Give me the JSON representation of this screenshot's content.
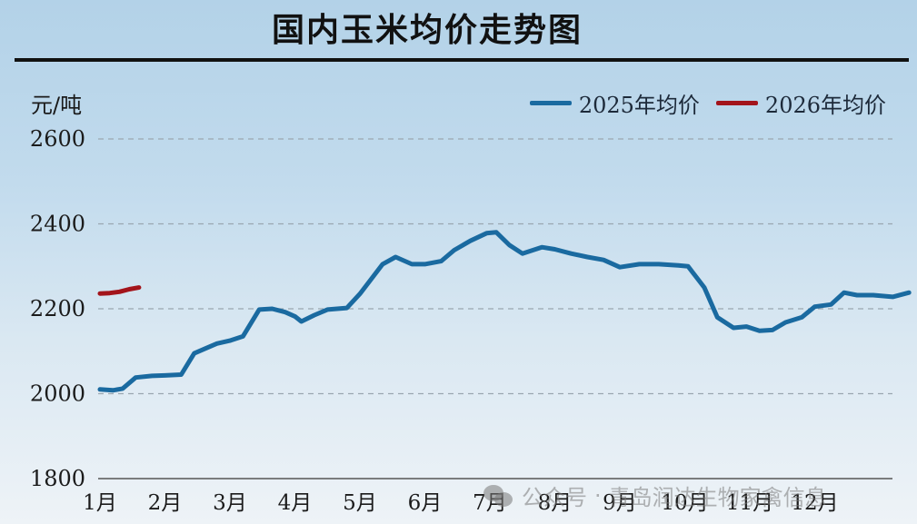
{
  "title": "国内玉米均价走势图",
  "unit_label": "元/吨",
  "legend": [
    {
      "label": "2025年均价",
      "color": "#1a6aa0"
    },
    {
      "label": "2026年均价",
      "color": "#a3141b"
    }
  ],
  "watermark": {
    "prefix": "公众号",
    "separator": "·",
    "name": "青岛润达生物家禽信息"
  },
  "chart_data": {
    "type": "line",
    "title": "国内玉米均价走势图",
    "xlabel": "",
    "ylabel": "元/吨",
    "ylim": [
      1800,
      2600
    ],
    "yticks": [
      1800,
      2000,
      2200,
      2400,
      2600
    ],
    "categories": [
      "1月",
      "2月",
      "3月",
      "4月",
      "5月",
      "6月",
      "7月",
      "8月",
      "9月",
      "10月",
      "11月",
      "12月"
    ],
    "grid": "horizontal dashed",
    "legend_position": "top-right",
    "series": [
      {
        "name": "2025年均价",
        "color": "#1a6aa0",
        "x": [
          1.0,
          1.2,
          1.35,
          1.55,
          1.8,
          2.0,
          2.25,
          2.45,
          2.6,
          2.8,
          3.0,
          3.2,
          3.45,
          3.65,
          3.85,
          4.0,
          4.1,
          4.3,
          4.5,
          4.8,
          5.0,
          5.15,
          5.35,
          5.55,
          5.8,
          6.0,
          6.25,
          6.45,
          6.7,
          6.95,
          7.1,
          7.3,
          7.5,
          7.8,
          8.0,
          8.25,
          8.5,
          8.75,
          9.0,
          9.3,
          9.6,
          9.9,
          10.05,
          10.3,
          10.5,
          10.75,
          10.95,
          11.15,
          11.35,
          11.55,
          11.8,
          12.0,
          12.25,
          12.45,
          12.65,
          12.9,
          13.2,
          13.45
        ],
        "values": [
          2010,
          2008,
          2012,
          2038,
          2042,
          2043,
          2045,
          2095,
          2105,
          2118,
          2125,
          2135,
          2198,
          2200,
          2192,
          2182,
          2170,
          2185,
          2198,
          2202,
          2235,
          2265,
          2305,
          2322,
          2305,
          2305,
          2312,
          2338,
          2360,
          2378,
          2380,
          2350,
          2330,
          2345,
          2340,
          2330,
          2322,
          2315,
          2298,
          2305,
          2305,
          2302,
          2300,
          2250,
          2180,
          2155,
          2158,
          2148,
          2150,
          2168,
          2180,
          2205,
          2210,
          2238,
          2232,
          2232,
          2228,
          2238
        ]
      },
      {
        "name": "2026年均价",
        "color": "#a3141b",
        "x": [
          1.0,
          1.15,
          1.3,
          1.45,
          1.6
        ],
        "values": [
          2236,
          2237,
          2240,
          2246,
          2250
        ]
      }
    ]
  }
}
